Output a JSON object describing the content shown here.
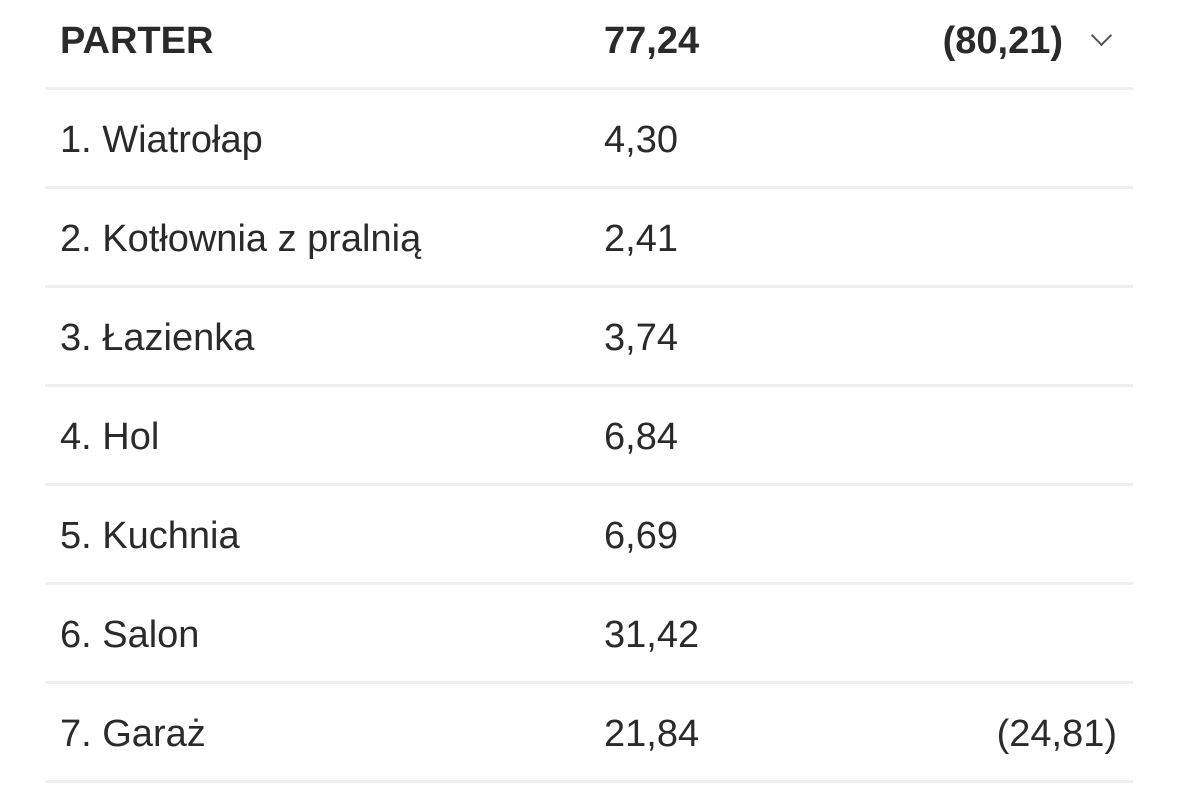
{
  "header": {
    "label": "PARTER",
    "area": "77,24",
    "gross_area": "(80,21)",
    "icon": "chevron-down-icon"
  },
  "rooms": [
    {
      "name": "1. Wiatrołap",
      "area": "4,30",
      "extra": ""
    },
    {
      "name": "2. Kotłownia z pralnią",
      "area": "2,41",
      "extra": ""
    },
    {
      "name": "3. Łazienka",
      "area": "3,74",
      "extra": ""
    },
    {
      "name": "4. Hol",
      "area": "6,84",
      "extra": ""
    },
    {
      "name": "5. Kuchnia",
      "area": "6,69",
      "extra": ""
    },
    {
      "name": "6. Salon",
      "area": "31,42",
      "extra": ""
    },
    {
      "name": "7. Garaż",
      "area": "21,84",
      "extra": "(24,81)"
    }
  ]
}
